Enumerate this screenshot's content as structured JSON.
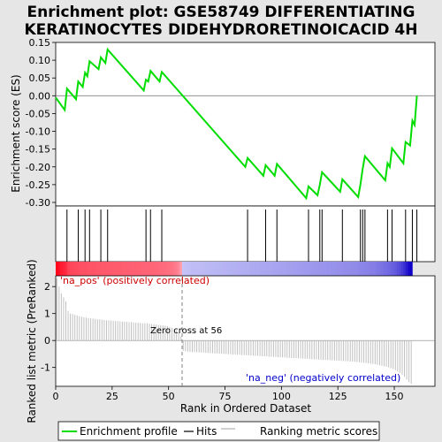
{
  "chart_data": {
    "type": "line",
    "title_line1": "Enrichment plot: GSE58749 DIFFERENTIATING",
    "title_line2": "KERATINOCYTES DIDEHYDRORETINOICACID 4H",
    "ylabel_top": "Enrichment score (ES)",
    "ylabel_bottom": "Ranked list metric (PreRanked)",
    "xlabel": "Rank in Ordered Dataset",
    "x_range": [
      0,
      168
    ],
    "es_range": [
      -0.31,
      0.15
    ],
    "metric_range": [
      -1.7,
      2.4
    ],
    "es_ticks": [
      0.15,
      0.1,
      0.05,
      0.0,
      -0.05,
      -0.1,
      -0.15,
      -0.2,
      -0.25,
      -0.3
    ],
    "es_tick_labels": [
      "0.15",
      "0.10",
      "0.05",
      "0.00",
      "-0.05",
      "-0.10",
      "-0.15",
      "-0.20",
      "-0.25",
      "-0.30"
    ],
    "metric_ticks": [
      2,
      1,
      0,
      -1
    ],
    "metric_tick_labels": [
      "2",
      "1",
      "0",
      "-1"
    ],
    "x_ticks": [
      0,
      25,
      50,
      75,
      100,
      125,
      150
    ],
    "x_tick_labels": [
      "0",
      "25",
      "50",
      "75",
      "100",
      "125",
      "150"
    ],
    "hits": [
      5,
      10,
      13,
      15,
      20,
      23,
      40,
      42,
      47,
      85,
      93,
      98,
      112,
      117,
      118,
      127,
      135,
      136,
      137,
      147,
      149,
      155,
      158,
      160
    ],
    "es_curve": {
      "x": [
        0,
        4,
        5,
        9,
        10,
        12,
        13,
        14,
        15,
        19,
        20,
        22,
        23,
        39,
        40,
        41,
        42,
        46,
        47,
        84,
        85,
        92,
        93,
        97,
        98,
        111,
        112,
        116,
        117,
        118,
        126,
        127,
        134,
        135,
        136,
        137,
        146,
        147,
        148,
        149,
        154,
        155,
        157,
        158,
        159,
        160
      ],
      "y": [
        -0.005,
        -0.04,
        0.02,
        -0.01,
        0.04,
        0.025,
        0.065,
        0.055,
        0.097,
        0.075,
        0.108,
        0.092,
        0.13,
        0.015,
        0.045,
        0.04,
        0.07,
        0.04,
        0.067,
        -0.2,
        -0.175,
        -0.225,
        -0.195,
        -0.225,
        -0.192,
        -0.288,
        -0.255,
        -0.28,
        -0.25,
        -0.215,
        -0.27,
        -0.235,
        -0.285,
        -0.25,
        -0.205,
        -0.17,
        -0.238,
        -0.19,
        -0.2,
        -0.148,
        -0.19,
        -0.13,
        -0.14,
        -0.07,
        -0.082,
        0.0
      ]
    },
    "metric_values": [
      2.3,
      2.0,
      1.75,
      1.6,
      1.45,
      1.1,
      1.0,
      0.98,
      0.95,
      0.93,
      0.9,
      0.88,
      0.86,
      0.85,
      0.83,
      0.82,
      0.81,
      0.8,
      0.79,
      0.78,
      0.77,
      0.76,
      0.75,
      0.75,
      0.74,
      0.73,
      0.72,
      0.72,
      0.71,
      0.7,
      0.7,
      0.69,
      0.68,
      0.68,
      0.67,
      0.66,
      0.66,
      0.65,
      0.64,
      0.64,
      0.63,
      0.62,
      0.61,
      0.6,
      0.59,
      0.58,
      0.57,
      0.56,
      0.55,
      0.53,
      0.5,
      0.47,
      0.43,
      0.38,
      0.3,
      0.15,
      -0.38,
      -0.4,
      -0.41,
      -0.42,
      -0.43,
      -0.43,
      -0.44,
      -0.44,
      -0.45,
      -0.45,
      -0.46,
      -0.46,
      -0.47,
      -0.47,
      -0.48,
      -0.48,
      -0.49,
      -0.49,
      -0.5,
      -0.5,
      -0.51,
      -0.51,
      -0.52,
      -0.52,
      -0.53,
      -0.53,
      -0.54,
      -0.54,
      -0.55,
      -0.55,
      -0.56,
      -0.56,
      -0.57,
      -0.57,
      -0.58,
      -0.58,
      -0.59,
      -0.59,
      -0.6,
      -0.6,
      -0.61,
      -0.61,
      -0.62,
      -0.62,
      -0.63,
      -0.63,
      -0.64,
      -0.64,
      -0.65,
      -0.65,
      -0.66,
      -0.66,
      -0.67,
      -0.67,
      -0.68,
      -0.68,
      -0.69,
      -0.69,
      -0.7,
      -0.7,
      -0.71,
      -0.71,
      -0.72,
      -0.72,
      -0.73,
      -0.73,
      -0.74,
      -0.74,
      -0.75,
      -0.75,
      -0.76,
      -0.76,
      -0.77,
      -0.77,
      -0.78,
      -0.78,
      -0.79,
      -0.8,
      -0.81,
      -0.82,
      -0.83,
      -0.84,
      -0.85,
      -0.86,
      -0.87,
      -0.88,
      -0.9,
      -0.92,
      -0.94,
      -0.96,
      -0.98,
      -1.0,
      -1.03,
      -1.06,
      -1.1,
      -1.15,
      -1.2,
      -1.27,
      -1.35,
      -1.45,
      -1.55,
      -1.6
    ],
    "zero_cross": 56,
    "zero_cross_label": "Zero cross at 56",
    "pos_label": "'na_pos' (positively correlated)",
    "neg_label": "'na_neg' (negatively correlated)",
    "legend": [
      "Enrichment profile",
      "Hits",
      "Ranking metric scores"
    ],
    "colors": {
      "es_line": "#00dd00",
      "hit": "#000000",
      "metric_bar": "#c0c0c0",
      "zero_line": "#808080",
      "heat_pos": "#e80018",
      "heat_neg": "#1000c8"
    }
  }
}
